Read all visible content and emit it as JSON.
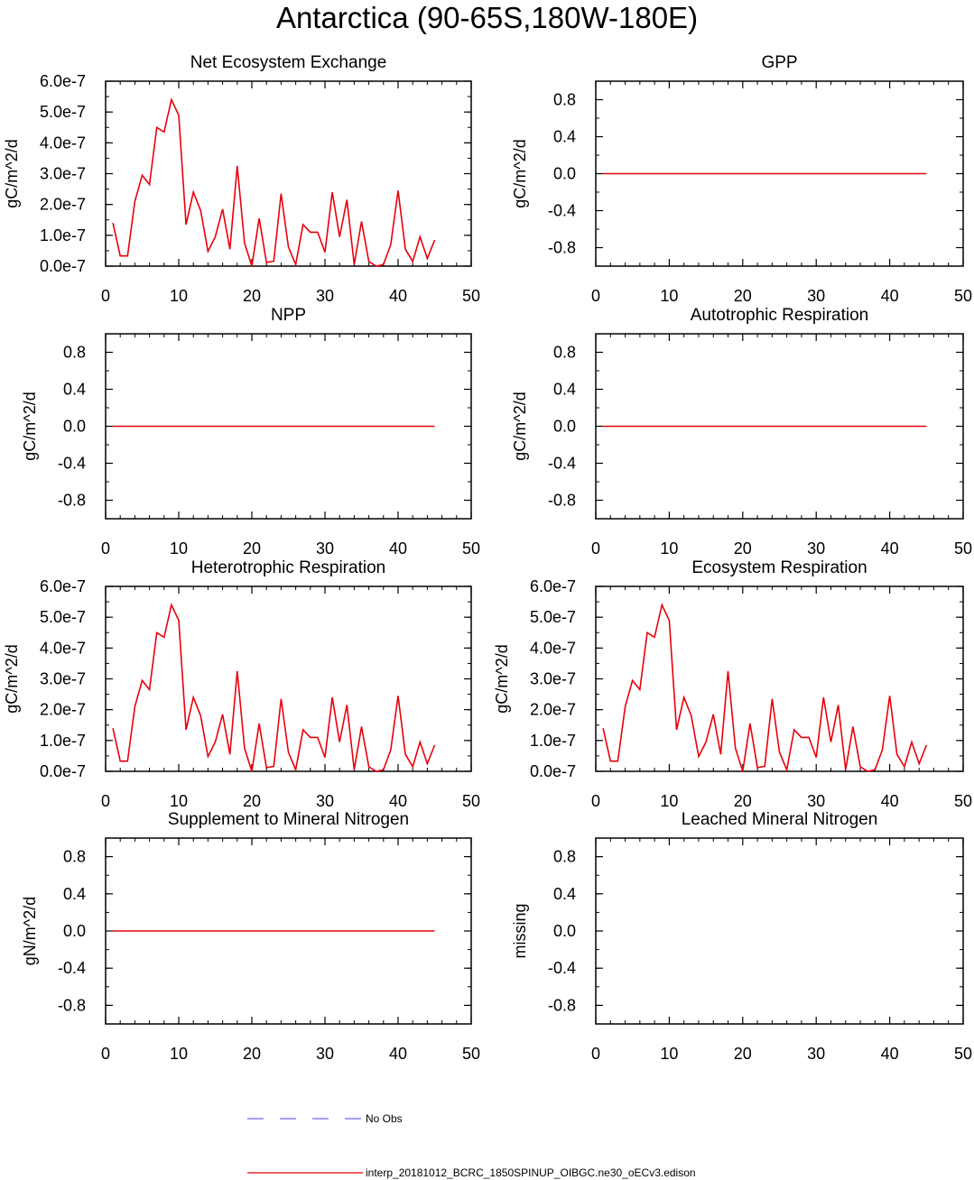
{
  "page": {
    "title": "Antarctica (90-65S,180W-180E)"
  },
  "legend": {
    "obs_label": "No Obs",
    "obs_color": "#6a6af0",
    "model_label": "interp_20181012_BCRC_1850SPINUP_OIBGC.ne30_oECv3.edison",
    "model_color": "#e8000b"
  },
  "chart_data": [
    {
      "type": "line",
      "title": "Net Ecosystem Exchange",
      "ylabel": "gC/m^2/d",
      "xlim": [
        0,
        50
      ],
      "ylim": [
        0,
        6e-07
      ],
      "xticks": [
        "0",
        "10",
        "20",
        "30",
        "40",
        "50"
      ],
      "yticks": [
        "0.0e-7",
        "1.0e-7",
        "2.0e-7",
        "3.0e-7",
        "4.0e-7",
        "5.0e-7",
        "6.0e-7"
      ],
      "series": [
        {
          "x": [
            1,
            2,
            3,
            4,
            5,
            6,
            7,
            8,
            9,
            10,
            11,
            12,
            13,
            14,
            15,
            16,
            17,
            18,
            19,
            20,
            21,
            22,
            23,
            24,
            25,
            26,
            27,
            28,
            29,
            30,
            31,
            32,
            33,
            34,
            35,
            36,
            37,
            38,
            39,
            40,
            41,
            42,
            43,
            44,
            45
          ],
          "values": [
            1.4e-07,
            3.3e-08,
            3.3e-08,
            2.1e-07,
            2.95e-07,
            2.65e-07,
            4.5e-07,
            4.35e-07,
            5.4e-07,
            4.9e-07,
            1.35e-07,
            2.4e-07,
            1.8e-07,
            4.8e-08,
            9.5e-08,
            1.85e-07,
            5.5e-08,
            3.25e-07,
            7.5e-08,
            0.0,
            1.55e-07,
            1.2e-08,
            1.6e-08,
            2.35e-07,
            6.2e-08,
            5e-09,
            1.35e-07,
            1.1e-07,
            1.1e-07,
            4.5e-08,
            2.4e-07,
            9.5e-08,
            2.15e-07,
            5e-09,
            1.45e-07,
            1.5e-08,
            0.0,
            5e-09,
            7e-08,
            2.45e-07,
            5.5e-08,
            1.5e-08,
            9.5e-08,
            2.5e-08,
            8.5e-08
          ]
        }
      ]
    },
    {
      "type": "line",
      "title": "GPP",
      "ylabel": "gC/m^2/d",
      "xlim": [
        0,
        50
      ],
      "ylim": [
        -1,
        1
      ],
      "xticks": [
        "0",
        "10",
        "20",
        "30",
        "40",
        "50"
      ],
      "yticks": [
        "-0.8",
        "-0.4",
        "0.0",
        "0.4",
        "0.8"
      ],
      "series": [
        {
          "x": [
            1,
            45
          ],
          "values": [
            0,
            0
          ]
        }
      ]
    },
    {
      "type": "line",
      "title": "NPP",
      "ylabel": "gC/m^2/d",
      "xlim": [
        0,
        50
      ],
      "ylim": [
        -1,
        1
      ],
      "xticks": [
        "0",
        "10",
        "20",
        "30",
        "40",
        "50"
      ],
      "yticks": [
        "-0.8",
        "-0.4",
        "0.0",
        "0.4",
        "0.8"
      ],
      "series": [
        {
          "x": [
            1,
            45
          ],
          "values": [
            0,
            0
          ]
        }
      ]
    },
    {
      "type": "line",
      "title": "Autotrophic Respiration",
      "ylabel": "gC/m^2/d",
      "xlim": [
        0,
        50
      ],
      "ylim": [
        -1,
        1
      ],
      "xticks": [
        "0",
        "10",
        "20",
        "30",
        "40",
        "50"
      ],
      "yticks": [
        "-0.8",
        "-0.4",
        "0.0",
        "0.4",
        "0.8"
      ],
      "series": [
        {
          "x": [
            1,
            45
          ],
          "values": [
            0,
            0
          ]
        }
      ]
    },
    {
      "type": "line",
      "title": "Heterotrophic Respiration",
      "ylabel": "gC/m^2/d",
      "xlim": [
        0,
        50
      ],
      "ylim": [
        0,
        6e-07
      ],
      "xticks": [
        "0",
        "10",
        "20",
        "30",
        "40",
        "50"
      ],
      "yticks": [
        "0.0e-7",
        "1.0e-7",
        "2.0e-7",
        "3.0e-7",
        "4.0e-7",
        "5.0e-7",
        "6.0e-7"
      ],
      "series": [
        {
          "x": [
            1,
            2,
            3,
            4,
            5,
            6,
            7,
            8,
            9,
            10,
            11,
            12,
            13,
            14,
            15,
            16,
            17,
            18,
            19,
            20,
            21,
            22,
            23,
            24,
            25,
            26,
            27,
            28,
            29,
            30,
            31,
            32,
            33,
            34,
            35,
            36,
            37,
            38,
            39,
            40,
            41,
            42,
            43,
            44,
            45
          ],
          "values": [
            1.4e-07,
            3.3e-08,
            3.3e-08,
            2.1e-07,
            2.95e-07,
            2.65e-07,
            4.5e-07,
            4.35e-07,
            5.4e-07,
            4.9e-07,
            1.35e-07,
            2.4e-07,
            1.8e-07,
            4.8e-08,
            9.5e-08,
            1.85e-07,
            5.5e-08,
            3.25e-07,
            7.5e-08,
            0.0,
            1.55e-07,
            1.2e-08,
            1.6e-08,
            2.35e-07,
            6.2e-08,
            5e-09,
            1.35e-07,
            1.1e-07,
            1.1e-07,
            4.5e-08,
            2.4e-07,
            9.5e-08,
            2.15e-07,
            5e-09,
            1.45e-07,
            1.5e-08,
            0.0,
            5e-09,
            7e-08,
            2.45e-07,
            5.5e-08,
            1.5e-08,
            9.5e-08,
            2.5e-08,
            8.5e-08
          ]
        }
      ]
    },
    {
      "type": "line",
      "title": "Ecosystem Respiration",
      "ylabel": "gC/m^2/d",
      "xlim": [
        0,
        50
      ],
      "ylim": [
        0,
        6e-07
      ],
      "xticks": [
        "0",
        "10",
        "20",
        "30",
        "40",
        "50"
      ],
      "yticks": [
        "0.0e-7",
        "1.0e-7",
        "2.0e-7",
        "3.0e-7",
        "4.0e-7",
        "5.0e-7",
        "6.0e-7"
      ],
      "series": [
        {
          "x": [
            1,
            2,
            3,
            4,
            5,
            6,
            7,
            8,
            9,
            10,
            11,
            12,
            13,
            14,
            15,
            16,
            17,
            18,
            19,
            20,
            21,
            22,
            23,
            24,
            25,
            26,
            27,
            28,
            29,
            30,
            31,
            32,
            33,
            34,
            35,
            36,
            37,
            38,
            39,
            40,
            41,
            42,
            43,
            44,
            45
          ],
          "values": [
            1.4e-07,
            3.3e-08,
            3.3e-08,
            2.1e-07,
            2.95e-07,
            2.65e-07,
            4.5e-07,
            4.35e-07,
            5.4e-07,
            4.9e-07,
            1.35e-07,
            2.4e-07,
            1.8e-07,
            4.8e-08,
            9.5e-08,
            1.85e-07,
            5.5e-08,
            3.25e-07,
            7.5e-08,
            0.0,
            1.55e-07,
            1.2e-08,
            1.6e-08,
            2.35e-07,
            6.2e-08,
            5e-09,
            1.35e-07,
            1.1e-07,
            1.1e-07,
            4.5e-08,
            2.4e-07,
            9.5e-08,
            2.15e-07,
            5e-09,
            1.45e-07,
            1.5e-08,
            0.0,
            5e-09,
            7e-08,
            2.45e-07,
            5.5e-08,
            1.5e-08,
            9.5e-08,
            2.5e-08,
            8.5e-08
          ]
        }
      ]
    },
    {
      "type": "line",
      "title": "Supplement to Mineral Nitrogen",
      "ylabel": "gN/m^2/d",
      "xlim": [
        0,
        50
      ],
      "ylim": [
        -1,
        1
      ],
      "xticks": [
        "0",
        "10",
        "20",
        "30",
        "40",
        "50"
      ],
      "yticks": [
        "-0.8",
        "-0.4",
        "0.0",
        "0.4",
        "0.8"
      ],
      "series": [
        {
          "x": [
            1,
            45
          ],
          "values": [
            0,
            0
          ]
        }
      ]
    },
    {
      "type": "line",
      "title": "Leached Mineral Nitrogen",
      "ylabel": "missing",
      "xlim": [
        0,
        50
      ],
      "ylim": [
        -1,
        1
      ],
      "xticks": [
        "0",
        "10",
        "20",
        "30",
        "40",
        "50"
      ],
      "yticks": [
        "-0.8",
        "-0.4",
        "0.0",
        "0.4",
        "0.8"
      ],
      "series": []
    }
  ]
}
